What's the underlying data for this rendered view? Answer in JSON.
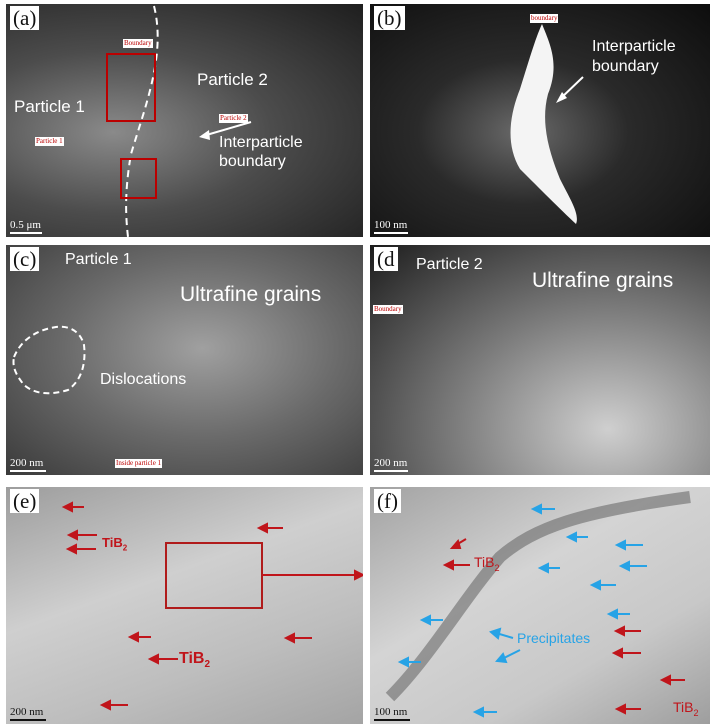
{
  "panels": {
    "a": {
      "label": "(a)",
      "boundary_tag": "Boundary",
      "particle1": "Particle 1",
      "particle2": "Particle 2",
      "tag1": "Particle 1",
      "tag2": "Particle 2",
      "interparticle": "Interparticle",
      "boundary": "boundary",
      "scale": "0.5 μm"
    },
    "b": {
      "label": "(b)",
      "boundary_tag": "boundary",
      "interparticle": "Interparticle",
      "boundary": "boundary",
      "scale": "100 nm"
    },
    "c": {
      "label": "(c)",
      "particle": "Particle 1",
      "ultrafine": "Ultrafine grains",
      "dislocations": "Dislocations",
      "inside_tag": "Inside particle 1",
      "scale": "200 nm"
    },
    "d": {
      "label": "(d",
      "particle": "Particle 2",
      "ultrafine": "Ultrafine grains",
      "boundary_tag": "Boundary",
      "scale": "200 nm"
    },
    "e": {
      "label": "(e)",
      "tib2_a": "TiB",
      "tib2_b": "TiB",
      "sub": "2",
      "scale": "200 nm"
    },
    "f": {
      "label": "(f)",
      "tib2_a": "TiB",
      "tib2_b": "TiB",
      "sub": "2",
      "precipitates": "Precipitates",
      "scale": "100 nm"
    }
  },
  "colors": {
    "red_annotation": "#c0151b",
    "blue_annotation": "#27a3e6"
  }
}
